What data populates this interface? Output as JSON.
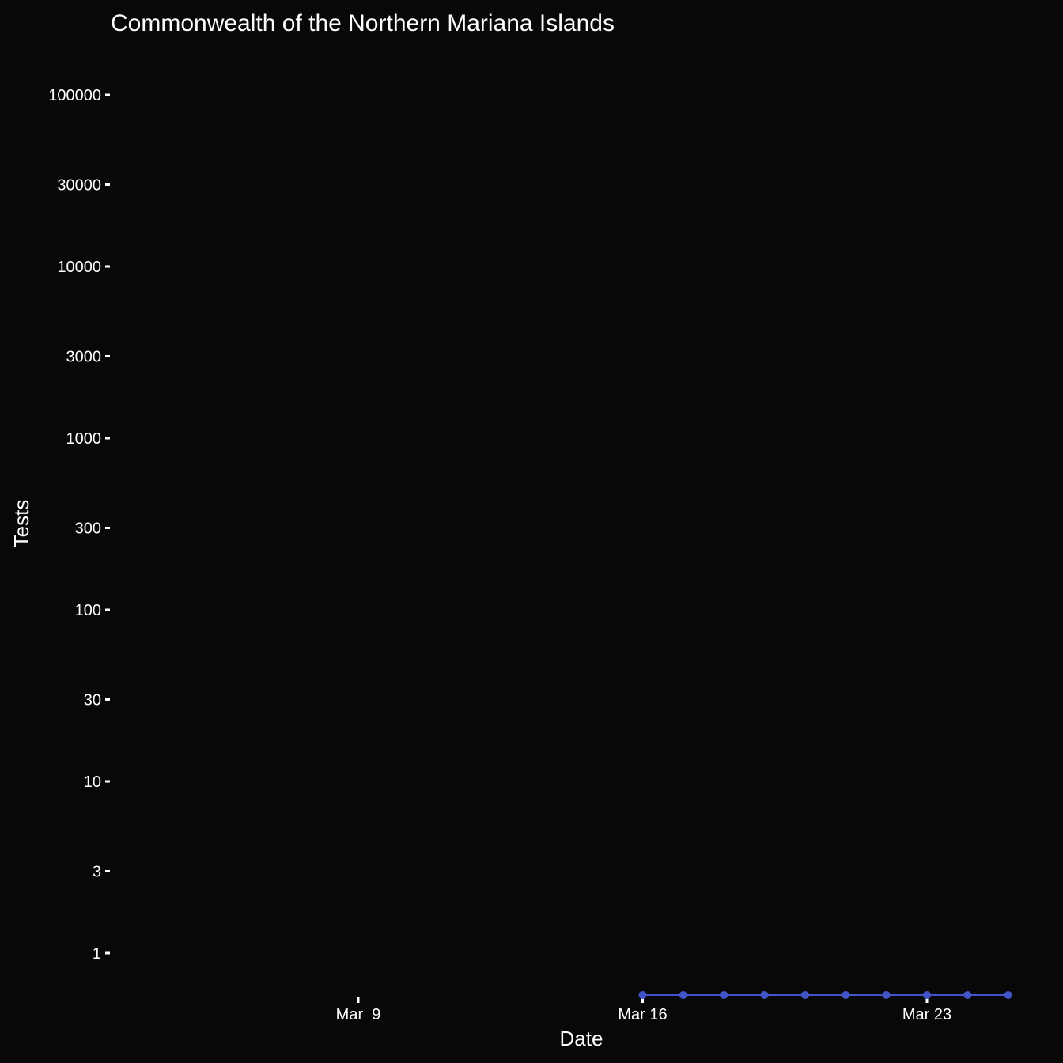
{
  "chart_data": {
    "type": "line",
    "title": "Commonwealth of the Northern Mariana Islands",
    "xlabel": "Date",
    "ylabel": "Tests",
    "yscale": "log",
    "grid": false,
    "background": "#080808",
    "text_color": "#ffffff",
    "series_color": "#4255c8",
    "xlim": [
      "2020-03-04",
      "2020-03-26"
    ],
    "x_ticks": [
      {
        "date": "2020-03-09",
        "label": "Mar  9"
      },
      {
        "date": "2020-03-16",
        "label": "Mar 16"
      },
      {
        "date": "2020-03-23",
        "label": "Mar 23"
      }
    ],
    "y_ticks": [
      {
        "value": 1,
        "label": "1"
      },
      {
        "value": 3,
        "label": "3"
      },
      {
        "value": 10,
        "label": "10"
      },
      {
        "value": 30,
        "label": "30"
      },
      {
        "value": 100,
        "label": "100"
      },
      {
        "value": 300,
        "label": "300"
      },
      {
        "value": 1000,
        "label": "1000"
      },
      {
        "value": 3000,
        "label": "3000"
      },
      {
        "value": 10000,
        "label": "10000"
      },
      {
        "value": 30000,
        "label": "30000"
      },
      {
        "value": 100000,
        "label": "100000"
      }
    ],
    "series": [
      {
        "x": [
          "2020-03-16",
          "2020-03-17",
          "2020-03-18",
          "2020-03-19",
          "2020-03-20",
          "2020-03-21",
          "2020-03-22",
          "2020-03-23",
          "2020-03-24",
          "2020-03-25"
        ],
        "y": [
          0,
          0,
          0,
          0,
          0,
          0,
          0,
          0,
          0,
          0
        ]
      }
    ]
  }
}
